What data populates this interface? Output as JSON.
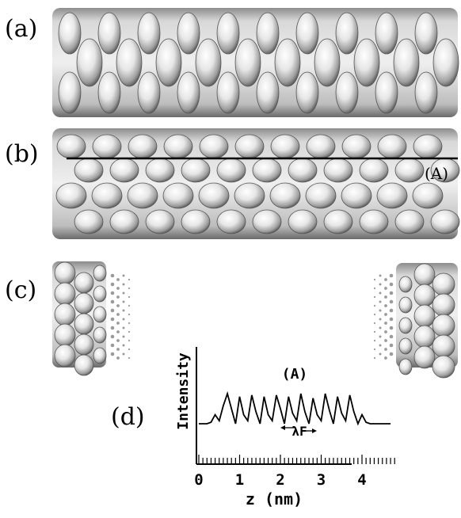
{
  "panels": {
    "a": "(a)",
    "b": "(b)",
    "c": "(c)",
    "d": "(d)"
  },
  "line_marker": "(A)",
  "colors": {
    "surface_light": "#f2f2f2",
    "surface_mid": "#b5b5b5",
    "surface_dark": "#5a5a5a",
    "line": "#000000"
  },
  "chart_data": {
    "type": "line",
    "title": "(A)",
    "xlabel": "z (nm)",
    "ylabel": "Intensity",
    "xlim": [
      0,
      4.8
    ],
    "x_ticks": [
      "0",
      "1",
      "2",
      "3",
      "4"
    ],
    "annotation": "λF",
    "series": [
      {
        "x": [
          0.0,
          0.1,
          0.2,
          0.3,
          0.4,
          0.5,
          0.6,
          0.7,
          0.8,
          0.9,
          1.0,
          1.1,
          1.2,
          1.3,
          1.4,
          1.5,
          1.6,
          1.7,
          1.8,
          1.9,
          2.0,
          2.1,
          2.2,
          2.3,
          2.4,
          2.5,
          2.6,
          2.7,
          2.8,
          2.9,
          3.0,
          3.1,
          3.2,
          3.3,
          3.4,
          3.5,
          3.6,
          3.7,
          3.8,
          3.9,
          4.0,
          4.1,
          4.2,
          4.3,
          4.4,
          4.5,
          4.6,
          4.7
        ],
        "y": [
          0.0,
          0.0,
          0.0,
          0.05,
          0.3,
          0.1,
          0.6,
          1.0,
          0.5,
          0.0,
          0.9,
          0.3,
          0.1,
          0.95,
          0.4,
          0.0,
          0.9,
          0.3,
          0.1,
          0.95,
          0.5,
          0.0,
          0.9,
          0.35,
          0.1,
          1.0,
          0.4,
          0.0,
          0.85,
          0.3,
          0.1,
          1.0,
          0.45,
          0.0,
          0.9,
          0.35,
          0.1,
          0.95,
          0.4,
          0.0,
          0.3,
          0.05,
          0.0,
          0.0,
          0.0,
          0.0,
          0.0,
          0.0
        ]
      }
    ]
  }
}
